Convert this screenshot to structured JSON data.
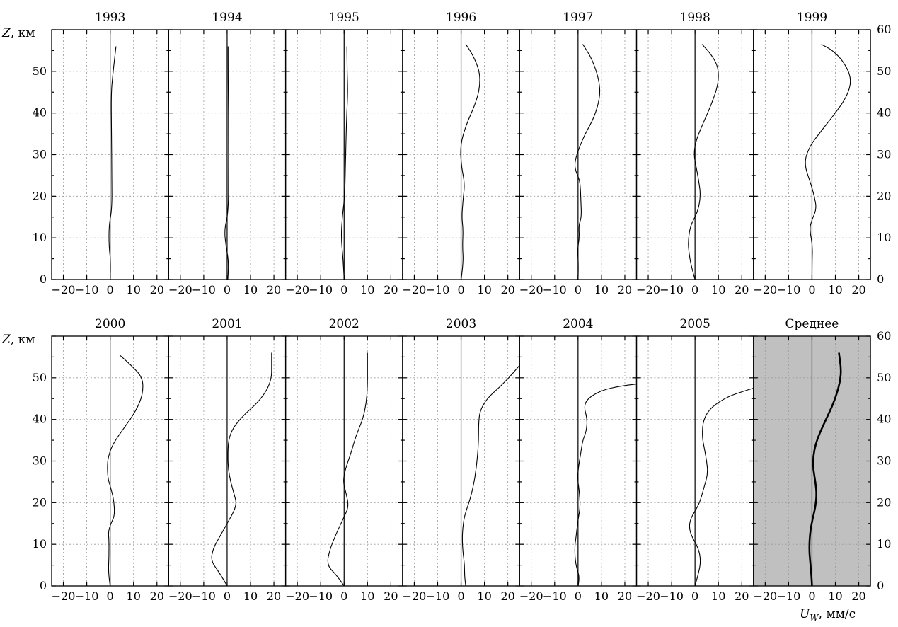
{
  "chart_data": {
    "type": "line",
    "x_axis_label_symbol": "U",
    "x_axis_label_subscript": "W",
    "x_axis_label_unit": ", мм/с",
    "y_axis_label_symbol": "Z",
    "y_axis_label_unit": ", км",
    "xlim": [
      -25,
      25
    ],
    "ylim": [
      0,
      60
    ],
    "x_tick_labels": [
      "−20",
      "−10",
      "0",
      "10",
      "20"
    ],
    "y_tick_values": [
      0,
      10,
      20,
      30,
      40,
      50,
      60
    ],
    "grid": true,
    "shaded_panel_color": "#c0c0c0",
    "panels": [
      {
        "title": "1993",
        "points": [
          [
            0,
            0
          ],
          [
            0.3,
            4
          ],
          [
            -0.5,
            8
          ],
          [
            -0.5,
            13
          ],
          [
            0.8,
            17
          ],
          [
            0.7,
            25
          ],
          [
            0.6,
            35
          ],
          [
            0.4,
            45
          ],
          [
            1.3,
            50
          ],
          [
            2.5,
            56
          ]
        ]
      },
      {
        "title": "1994",
        "points": [
          [
            0.3,
            0
          ],
          [
            0.8,
            4
          ],
          [
            -0.5,
            8
          ],
          [
            -1.2,
            12
          ],
          [
            0.5,
            16
          ],
          [
            0.6,
            25
          ],
          [
            0.6,
            35
          ],
          [
            0.5,
            45
          ],
          [
            0.4,
            52
          ],
          [
            0.4,
            56
          ]
        ]
      },
      {
        "title": "1995",
        "points": [
          [
            0,
            0
          ],
          [
            -0.4,
            5
          ],
          [
            -1.3,
            10
          ],
          [
            -0.8,
            15
          ],
          [
            0.3,
            20
          ],
          [
            0.6,
            28
          ],
          [
            1,
            38
          ],
          [
            1.6,
            45
          ],
          [
            1.3,
            50
          ],
          [
            1.2,
            56
          ]
        ]
      },
      {
        "title": "1996",
        "points": [
          [
            0,
            0
          ],
          [
            1,
            4
          ],
          [
            0.6,
            8
          ],
          [
            0.9,
            12
          ],
          [
            0.3,
            15
          ],
          [
            0.8,
            19
          ],
          [
            1.6,
            23
          ],
          [
            0.2,
            27
          ],
          [
            -0.4,
            32
          ],
          [
            2,
            37
          ],
          [
            6,
            42
          ],
          [
            8,
            46
          ],
          [
            8,
            50
          ],
          [
            5,
            54
          ],
          [
            2,
            56.5
          ]
        ]
      },
      {
        "title": "1997",
        "points": [
          [
            0,
            0
          ],
          [
            0.2,
            4
          ],
          [
            -0.3,
            7
          ],
          [
            0.6,
            10
          ],
          [
            0.3,
            13
          ],
          [
            1.5,
            15
          ],
          [
            1.2,
            19
          ],
          [
            1,
            22
          ],
          [
            0.6,
            24
          ],
          [
            -1,
            26
          ],
          [
            -1.5,
            28
          ],
          [
            0,
            31
          ],
          [
            3,
            35
          ],
          [
            7,
            39
          ],
          [
            9.5,
            44
          ],
          [
            9,
            48
          ],
          [
            6,
            53
          ],
          [
            2,
            56.5
          ]
        ]
      },
      {
        "title": "1998",
        "points": [
          [
            0,
            0
          ],
          [
            -1.5,
            3
          ],
          [
            -2.5,
            6
          ],
          [
            -3,
            9
          ],
          [
            -2,
            13
          ],
          [
            1,
            16
          ],
          [
            2.5,
            20
          ],
          [
            1.5,
            24
          ],
          [
            0.5,
            27
          ],
          [
            -0.5,
            30
          ],
          [
            0.2,
            33
          ],
          [
            3,
            37
          ],
          [
            7,
            42
          ],
          [
            10,
            47
          ],
          [
            10,
            51
          ],
          [
            7,
            54
          ],
          [
            3,
            56.5
          ]
        ]
      },
      {
        "title": "1999",
        "points": [
          [
            0,
            0
          ],
          [
            0,
            4
          ],
          [
            0.3,
            8
          ],
          [
            -1,
            12
          ],
          [
            -0.3,
            14
          ],
          [
            2,
            17
          ],
          [
            1,
            20
          ],
          [
            -0.5,
            23
          ],
          [
            -3.5,
            28
          ],
          [
            -1,
            32
          ],
          [
            3,
            35
          ],
          [
            10,
            40
          ],
          [
            15,
            44
          ],
          [
            17,
            48
          ],
          [
            14,
            52
          ],
          [
            9,
            55
          ],
          [
            4,
            56.5
          ]
        ]
      },
      {
        "title": "2000",
        "points": [
          [
            0,
            0
          ],
          [
            -0.8,
            3
          ],
          [
            -0.5,
            7
          ],
          [
            -0.5,
            11
          ],
          [
            -0.8,
            13
          ],
          [
            0.3,
            15
          ],
          [
            2,
            17
          ],
          [
            1.5,
            21
          ],
          [
            0,
            24
          ],
          [
            -1,
            26
          ],
          [
            -1.2,
            29
          ],
          [
            -0.8,
            31
          ],
          [
            1,
            34
          ],
          [
            6,
            38
          ],
          [
            11,
            42
          ],
          [
            14,
            46
          ],
          [
            14,
            50
          ],
          [
            9,
            53
          ],
          [
            4,
            55.5
          ]
        ]
      },
      {
        "title": "2001",
        "points": [
          [
            0,
            0
          ],
          [
            -3,
            3
          ],
          [
            -7,
            6
          ],
          [
            -6,
            9
          ],
          [
            -3,
            12
          ],
          [
            0,
            15
          ],
          [
            3,
            18
          ],
          [
            4,
            20
          ],
          [
            3,
            22
          ],
          [
            1.5,
            25
          ],
          [
            0.5,
            28
          ],
          [
            0.3,
            31
          ],
          [
            0.5,
            35
          ],
          [
            2.5,
            38
          ],
          [
            7,
            41
          ],
          [
            13,
            44
          ],
          [
            17,
            47
          ],
          [
            19,
            50
          ],
          [
            19,
            53
          ],
          [
            19,
            56
          ]
        ]
      },
      {
        "title": "2002",
        "points": [
          [
            0,
            0
          ],
          [
            -3,
            2.5
          ],
          [
            -7.5,
            5
          ],
          [
            -6,
            9
          ],
          [
            -3,
            13
          ],
          [
            -0.5,
            16
          ],
          [
            2,
            19
          ],
          [
            1,
            22
          ],
          [
            -0.5,
            25
          ],
          [
            0.5,
            28
          ],
          [
            3,
            32
          ],
          [
            5,
            36
          ],
          [
            8,
            40
          ],
          [
            9.5,
            44
          ],
          [
            10,
            48
          ],
          [
            10,
            52
          ],
          [
            10,
            56
          ]
        ]
      },
      {
        "title": "2003",
        "points": [
          [
            2,
            0
          ],
          [
            1.5,
            2
          ],
          [
            1.5,
            5
          ],
          [
            0.8,
            8
          ],
          [
            0.5,
            11
          ],
          [
            0.7,
            14
          ],
          [
            1.5,
            17
          ],
          [
            4,
            21
          ],
          [
            6,
            26
          ],
          [
            7,
            31
          ],
          [
            7.5,
            35
          ],
          [
            7.5,
            39
          ],
          [
            8,
            42
          ],
          [
            11,
            45
          ],
          [
            17,
            48
          ],
          [
            22,
            51
          ],
          [
            25,
            53
          ]
        ]
      },
      {
        "title": "2004",
        "points": [
          [
            0,
            0
          ],
          [
            0.8,
            2
          ],
          [
            -1,
            5
          ],
          [
            -1.5,
            9
          ],
          [
            -0.8,
            12
          ],
          [
            0,
            16
          ],
          [
            1,
            19
          ],
          [
            0.5,
            23
          ],
          [
            -0.3,
            26
          ],
          [
            0.3,
            29
          ],
          [
            1.2,
            32
          ],
          [
            2,
            35
          ],
          [
            3.5,
            37
          ],
          [
            4,
            40
          ],
          [
            2.5,
            43
          ],
          [
            4,
            45
          ],
          [
            10,
            47
          ],
          [
            18,
            48
          ],
          [
            25,
            48.5
          ]
        ]
      },
      {
        "title": "2005",
        "points": [
          [
            0,
            0
          ],
          [
            1.5,
            3
          ],
          [
            2.5,
            6
          ],
          [
            1.5,
            9
          ],
          [
            -1.5,
            12
          ],
          [
            -2.5,
            14
          ],
          [
            -2,
            16
          ],
          [
            0,
            18
          ],
          [
            2,
            20
          ],
          [
            4,
            24
          ],
          [
            5.5,
            27
          ],
          [
            5,
            30
          ],
          [
            4,
            33
          ],
          [
            3,
            36
          ],
          [
            3.5,
            40
          ],
          [
            7,
            43
          ],
          [
            14,
            45.5
          ],
          [
            22,
            47
          ],
          [
            25,
            47.5
          ]
        ]
      },
      {
        "title": "Среднее",
        "shaded": true,
        "bold": true,
        "points": [
          [
            0,
            0
          ],
          [
            -0.3,
            3
          ],
          [
            -0.8,
            6
          ],
          [
            -1.2,
            9
          ],
          [
            -0.8,
            13
          ],
          [
            0.2,
            16
          ],
          [
            1.5,
            19
          ],
          [
            2,
            22
          ],
          [
            1.5,
            25
          ],
          [
            0.5,
            28
          ],
          [
            0.5,
            31
          ],
          [
            1.5,
            34
          ],
          [
            3.5,
            37
          ],
          [
            6,
            40
          ],
          [
            8.5,
            43
          ],
          [
            10.5,
            46
          ],
          [
            12,
            49
          ],
          [
            12.5,
            52
          ],
          [
            11.5,
            56
          ]
        ]
      }
    ]
  }
}
